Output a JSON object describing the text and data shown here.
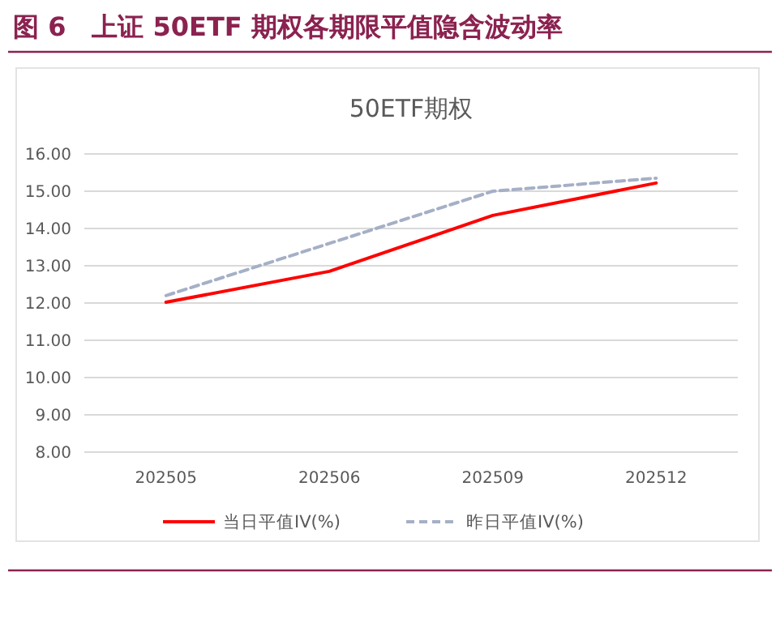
{
  "chart_data": {
    "type": "line",
    "title": "图 6　上证 50ETF 期权各期限平值隐含波动率",
    "subtitle": "50ETF期权",
    "categories": [
      "202505",
      "202506",
      "202509",
      "202512"
    ],
    "series": [
      {
        "name": "当日平值IV(%)",
        "color": "#ff0000",
        "values": [
          12.02,
          12.85,
          14.35,
          15.22
        ],
        "line_style": "solid"
      },
      {
        "name": "昨日平值IV(%)",
        "color": "#a5b0c6",
        "values": [
          12.2,
          13.6,
          15.0,
          15.35
        ],
        "line_style": "dashed"
      }
    ],
    "ylim": [
      8,
      16
    ],
    "yticks": [
      {
        "value": 8,
        "label": "8.00"
      },
      {
        "value": 9,
        "label": "9.00"
      },
      {
        "value": 10,
        "label": "10.00"
      },
      {
        "value": 11,
        "label": "11.00"
      },
      {
        "value": 12,
        "label": "12.00"
      },
      {
        "value": 13,
        "label": "13.00"
      },
      {
        "value": 14,
        "label": "14.00"
      },
      {
        "value": 15,
        "label": "15.00"
      },
      {
        "value": 16,
        "label": "16.00"
      }
    ],
    "grid": "y",
    "legend": "bottom",
    "marker": "none"
  }
}
